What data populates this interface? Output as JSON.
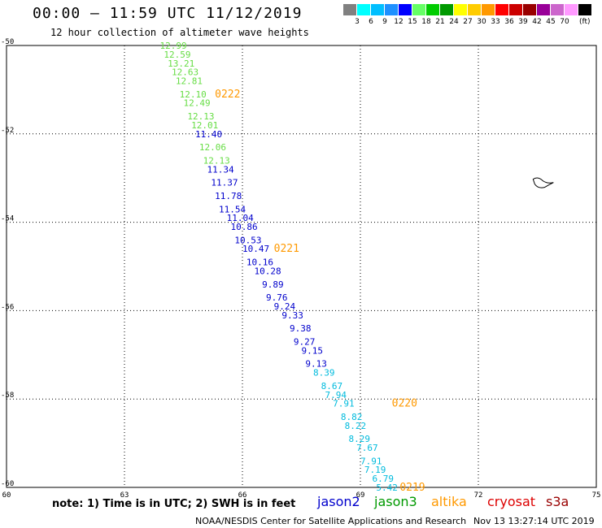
{
  "header": {
    "title": "00:00 – 11:59 UTC 11/12/2019",
    "subtitle": "12 hour collection of altimeter wave heights"
  },
  "footer": {
    "note": "note: 1) Time is in UTC; 2) SWH is in feet",
    "credit": "NOAA/NESDIS Center for Satellite Applications and Research",
    "timestamp": "Nov 13 13:27:14 UTC 2019"
  },
  "satellite_legend": [
    {
      "name": "jason2",
      "color": "#0000cc"
    },
    {
      "name": "jason3",
      "color": "#009900"
    },
    {
      "name": "altika",
      "color": "#ff9900"
    },
    {
      "name": "cryosat",
      "color": "#dd0000"
    },
    {
      "name": "s3a",
      "color": "#990000"
    }
  ],
  "colorbar": {
    "unit": "(ft)",
    "bins": [
      {
        "label": "",
        "color": "#808080"
      },
      {
        "label": "3",
        "color": "#00ffff"
      },
      {
        "label": "6",
        "color": "#00bfff"
      },
      {
        "label": "9",
        "color": "#1e90ff"
      },
      {
        "label": "12",
        "color": "#0000ff"
      },
      {
        "label": "15",
        "color": "#66ff66"
      },
      {
        "label": "18",
        "color": "#00cc00"
      },
      {
        "label": "21",
        "color": "#009900"
      },
      {
        "label": "24",
        "color": "#ffff00"
      },
      {
        "label": "27",
        "color": "#ffcc00"
      },
      {
        "label": "30",
        "color": "#ff9900"
      },
      {
        "label": "33",
        "color": "#ff0000"
      },
      {
        "label": "36",
        "color": "#cc0000"
      },
      {
        "label": "39",
        "color": "#990000"
      },
      {
        "label": "42",
        "color": "#990099"
      },
      {
        "label": "45",
        "color": "#cc66cc"
      },
      {
        "label": "70",
        "color": "#ff99ff"
      },
      {
        "label": "",
        "color": "#000000"
      }
    ]
  },
  "chart_data": {
    "type": "scatter",
    "title": "00:00 – 11:59 UTC 11/12/2019",
    "subtitle": "12 hour collection of altimeter wave heights",
    "xlabel": "",
    "ylabel": "",
    "xlim": [
      60,
      75
    ],
    "ylim": [
      -60,
      -50
    ],
    "x_ticks": [
      "60",
      "63",
      "66",
      "69",
      "72",
      "75"
    ],
    "y_ticks": [
      "-50",
      "-52",
      "-54",
      "-56",
      "-58",
      "-60"
    ],
    "grid": true,
    "colors": {
      "jason3": "#66dd44",
      "jason2": "#0000cc",
      "cyan": "#00bbdd",
      "time_label": "#ff9900"
    },
    "series": [
      {
        "name": "jason3",
        "points": [
          {
            "x": 63.9,
            "y": -50.0,
            "label": "12.99"
          },
          {
            "x": 64.0,
            "y": -50.2,
            "label": "12.59"
          },
          {
            "x": 64.1,
            "y": -50.4,
            "label": "13.21"
          },
          {
            "x": 64.2,
            "y": -50.6,
            "label": "12.63"
          },
          {
            "x": 64.3,
            "y": -50.8,
            "label": "12.81"
          },
          {
            "x": 64.4,
            "y": -51.1,
            "label": "12.10"
          },
          {
            "x": 64.5,
            "y": -51.3,
            "label": "12.49"
          },
          {
            "x": 64.6,
            "y": -51.6,
            "label": "12.13"
          },
          {
            "x": 64.7,
            "y": -51.8,
            "label": "12.01"
          },
          {
            "x": 64.9,
            "y": -52.3,
            "label": "12.06"
          },
          {
            "x": 65.0,
            "y": -52.6,
            "label": "12.13"
          }
        ]
      },
      {
        "name": "jason2",
        "points": [
          {
            "x": 64.8,
            "y": -52.0,
            "label": "11.40"
          },
          {
            "x": 65.1,
            "y": -52.8,
            "label": "11.34"
          },
          {
            "x": 65.2,
            "y": -53.1,
            "label": "11.37"
          },
          {
            "x": 65.3,
            "y": -53.4,
            "label": "11.78"
          },
          {
            "x": 65.4,
            "y": -53.7,
            "label": "11.54"
          },
          {
            "x": 65.6,
            "y": -53.9,
            "label": "11.04"
          },
          {
            "x": 65.7,
            "y": -54.1,
            "label": "10.86"
          },
          {
            "x": 65.8,
            "y": -54.4,
            "label": "10.53"
          },
          {
            "x": 66.0,
            "y": -54.6,
            "label": "10.47"
          },
          {
            "x": 66.1,
            "y": -54.9,
            "label": "10.16"
          },
          {
            "x": 66.3,
            "y": -55.1,
            "label": "10.28"
          },
          {
            "x": 66.5,
            "y": -55.4,
            "label": "9.89"
          },
          {
            "x": 66.6,
            "y": -55.7,
            "label": "9.76"
          },
          {
            "x": 66.8,
            "y": -55.9,
            "label": "9.24"
          },
          {
            "x": 67.0,
            "y": -56.1,
            "label": "9.33"
          },
          {
            "x": 67.2,
            "y": -56.4,
            "label": "9.38"
          },
          {
            "x": 67.3,
            "y": -56.7,
            "label": "9.27"
          },
          {
            "x": 67.5,
            "y": -56.9,
            "label": "9.15"
          },
          {
            "x": 67.6,
            "y": -57.2,
            "label": "9.13"
          }
        ]
      },
      {
        "name": "",
        "points": [
          {
            "x": 67.8,
            "y": -57.4,
            "label": "8.39"
          },
          {
            "x": 68.0,
            "y": -57.7,
            "label": "8.67"
          },
          {
            "x": 68.1,
            "y": -57.9,
            "label": "7.94"
          },
          {
            "x": 68.3,
            "y": -58.1,
            "label": "7.91"
          },
          {
            "x": 68.5,
            "y": -58.4,
            "label": "8.82"
          },
          {
            "x": 68.6,
            "y": -58.6,
            "label": "8.22"
          },
          {
            "x": 68.7,
            "y": -58.9,
            "label": "8.29"
          },
          {
            "x": 68.9,
            "y": -59.1,
            "label": "7.67"
          },
          {
            "x": 69.0,
            "y": -59.4,
            "label": "7.91"
          },
          {
            "x": 69.1,
            "y": -59.6,
            "label": "7.19"
          },
          {
            "x": 69.3,
            "y": -59.8,
            "label": "6.79"
          },
          {
            "x": 69.4,
            "y": -60.0,
            "label": "5.42"
          }
        ]
      }
    ],
    "annotations": [
      {
        "x": 65.3,
        "y": -51.1,
        "label": "0222"
      },
      {
        "x": 66.8,
        "y": -54.6,
        "label": "0221"
      },
      {
        "x": 69.8,
        "y": -58.1,
        "label": "0220"
      },
      {
        "x": 70.0,
        "y": -60.0,
        "label": "0219"
      }
    ],
    "island": {
      "x": 73.6,
      "y": -53.1
    }
  }
}
